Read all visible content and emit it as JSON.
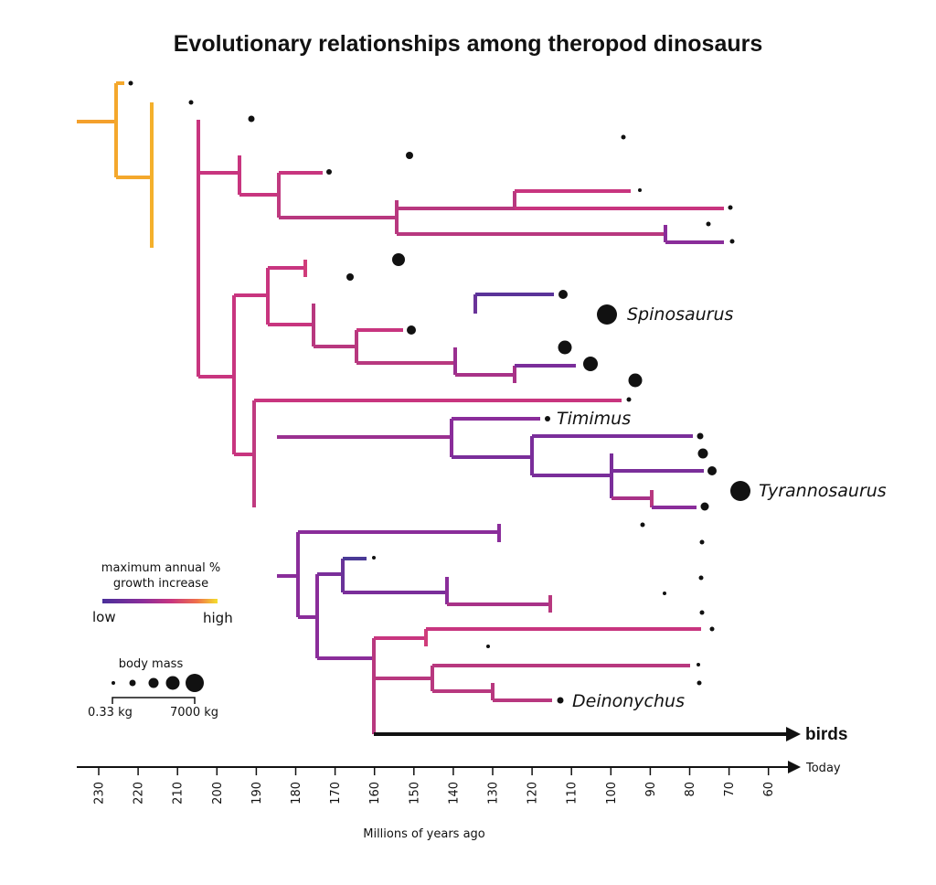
{
  "title": "Evolutionary relationships among theropod dinosaurs",
  "taxa": {
    "spinosaurus": "Spinosaurus",
    "timimus": "Timimus",
    "tyrannosaurus": "Tyrannosaurus",
    "deinonychus": "Deinonychus",
    "birds": "birds"
  },
  "legend": {
    "growth_title_line1": "maximum annual %",
    "growth_title_line2": "growth increase",
    "growth_low": "low",
    "growth_high": "high",
    "growth_colors": [
      "#4a2f9a",
      "#8a2d9a",
      "#c8357f",
      "#ef6f4a",
      "#f4df2c"
    ],
    "mass_title": "body mass",
    "mass_min": "0.33 kg",
    "mass_max": "7000 kg"
  },
  "axis": {
    "label": "Millions of years ago",
    "today": "Today",
    "ticks": [
      "230",
      "220",
      "210",
      "200",
      "190",
      "180",
      "170",
      "160",
      "150",
      "140",
      "130",
      "120",
      "110",
      "100",
      "90",
      "80",
      "70",
      "60"
    ]
  }
}
